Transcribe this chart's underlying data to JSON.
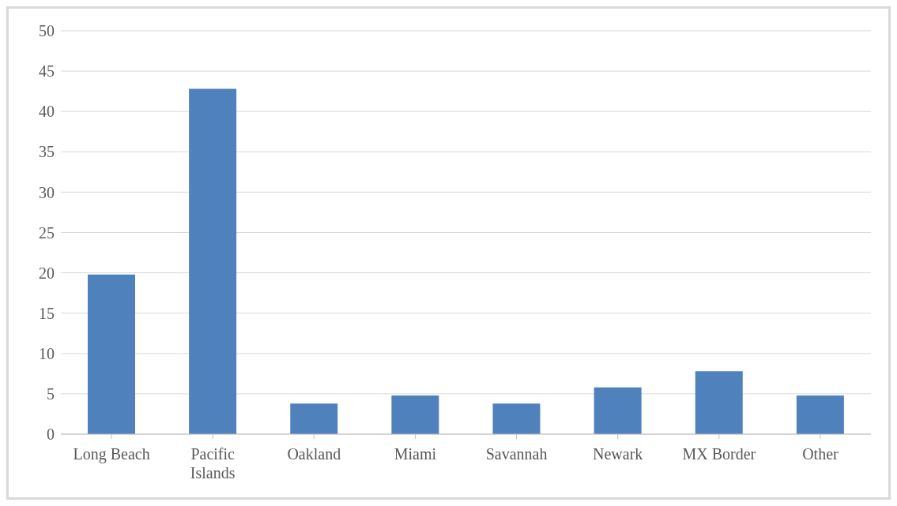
{
  "chart_data": {
    "type": "bar",
    "categories": [
      "Long Beach",
      "Pacific Islands",
      "Oakland",
      "Miami",
      "Savannah",
      "Newark",
      "MX Border",
      "Other"
    ],
    "values": [
      19.8,
      42.8,
      3.8,
      4.8,
      3.8,
      5.8,
      7.8,
      4.8
    ],
    "color": "#4f81bd",
    "ylim": [
      0,
      50
    ],
    "yticks": [
      0,
      5,
      10,
      15,
      20,
      25,
      30,
      35,
      40,
      45,
      50
    ],
    "grid": "y",
    "legend": false
  }
}
